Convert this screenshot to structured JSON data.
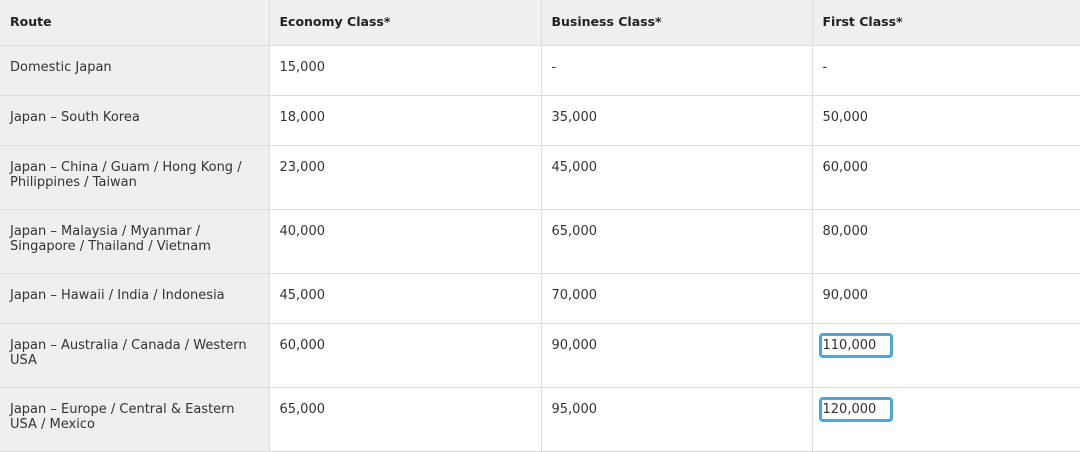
{
  "table": {
    "headers": [
      "Route",
      "Economy Class*",
      "Business Class*",
      "First Class*"
    ],
    "rows": [
      {
        "route": "Domestic Japan",
        "economy": "15,000",
        "business": "-",
        "first": "-",
        "highlight_first": false
      },
      {
        "route": "Japan – South Korea",
        "economy": "18,000",
        "business": "35,000",
        "first": "50,000",
        "highlight_first": false
      },
      {
        "route": "Japan – China / Guam / Hong Kong / Philippines / Taiwan",
        "economy": "23,000",
        "business": "45,000",
        "first": "60,000",
        "highlight_first": false
      },
      {
        "route": "Japan – Malaysia / Myanmar / Singapore / Thailand / Vietnam",
        "economy": "40,000",
        "business": "65,000",
        "first": "80,000",
        "highlight_first": false
      },
      {
        "route": "Japan – Hawaii / India / Indonesia",
        "economy": "45,000",
        "business": "70,000",
        "first": "90,000",
        "highlight_first": false
      },
      {
        "route": "Japan – Australia / Canada / Western USA",
        "economy": "60,000",
        "business": "90,000",
        "first": "110,000",
        "highlight_first": true
      },
      {
        "route": "Japan – Europe / Central & Eastern USA / Mexico",
        "economy": "65,000",
        "business": "95,000",
        "first": "120,000",
        "highlight_first": true
      }
    ]
  },
  "colors": {
    "header_bg": "#efefef",
    "highlight_border": "#4aa8d8",
    "border": "#dcdcdc"
  }
}
